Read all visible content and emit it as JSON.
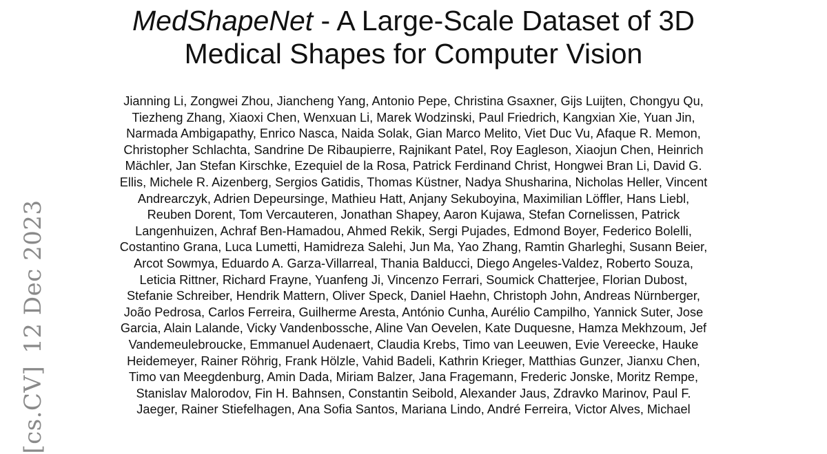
{
  "title": {
    "name_italic": "MedShapeNet",
    "line1_rest": " - A Large-Scale Dataset of 3D",
    "line2": "Medical Shapes for Computer Vision"
  },
  "authors": {
    "lines": [
      "Jianning Li, Zongwei Zhou, Jiancheng Yang, Antonio Pepe, Christina Gsaxner, Gijs Luijten, Chongyu Qu,",
      "Tiezheng Zhang, Xiaoxi Chen, Wenxuan Li, Marek Wodzinski, Paul Friedrich, Kangxian Xie, Yuan Jin,",
      "Narmada Ambigapathy, Enrico Nasca, Naida Solak, Gian Marco Melito, Viet Duc Vu, Afaque R. Memon,",
      "Christopher Schlachta, Sandrine De Ribaupierre, Rajnikant Patel, Roy Eagleson, Xiaojun Chen, Heinrich",
      "Mächler, Jan Stefan Kirschke, Ezequiel de la Rosa, Patrick Ferdinand Christ, Hongwei Bran Li, David G.",
      "Ellis, Michele R. Aizenberg, Sergios Gatidis, Thomas Küstner, Nadya Shusharina, Nicholas Heller, Vincent",
      "Andrearczyk, Adrien Depeursinge, Mathieu Hatt, Anjany Sekuboyina, Maximilian Löffler, Hans Liebl,",
      "Reuben Dorent, Tom Vercauteren, Jonathan Shapey, Aaron Kujawa, Stefan Cornelissen, Patrick",
      "Langenhuizen, Achraf Ben-Hamadou, Ahmed Rekik, Sergi Pujades, Edmond Boyer, Federico Bolelli,",
      "Costantino Grana, Luca Lumetti, Hamidreza Salehi, Jun Ma, Yao Zhang, Ramtin Gharleghi, Susann Beier,",
      "Arcot Sowmya, Eduardo A. Garza-Villarreal, Thania Balducci, Diego Angeles-Valdez, Roberto Souza,",
      "Leticia Rittner, Richard Frayne, Yuanfeng Ji, Vincenzo Ferrari, Soumick Chatterjee, Florian Dubost,",
      "Stefanie Schreiber, Hendrik Mattern, Oliver Speck, Daniel Haehn, Christoph John, Andreas Nürnberger,",
      "João Pedrosa, Carlos Ferreira, Guilherme Aresta, António Cunha, Aurélio Campilho, Yannick Suter, Jose",
      "Garcia, Alain Lalande, Vicky Vandenbossche, Aline Van Oevelen, Kate Duquesne, Hamza Mekhzoum, Jef",
      "Vandemeulebroucke, Emmanuel Audenaert, Claudia Krebs, Timo van Leeuwen, Evie Vereecke, Hauke",
      "Heidemeyer, Rainer Röhrig, Frank Hölzle, Vahid Badeli, Kathrin Krieger, Matthias Gunzer, Jianxu Chen,",
      "Timo van Meegdenburg, Amin Dada, Miriam Balzer, Jana Fragemann, Frederic Jonske, Moritz Rempe,",
      "Stanislav Malorodov, Fin H. Bahnsen, Constantin Seibold, Alexander Jaus, Zdravko Marinov, Paul F.",
      "Jaeger, Rainer Stiefelhagen, Ana Sofia Santos, Mariana Lindo, André Ferreira, Victor Alves, Michael"
    ]
  },
  "arxiv_stamp": {
    "category": "[cs.CV]",
    "date": "12 Dec 2023",
    "color": "#8a8a8a"
  }
}
